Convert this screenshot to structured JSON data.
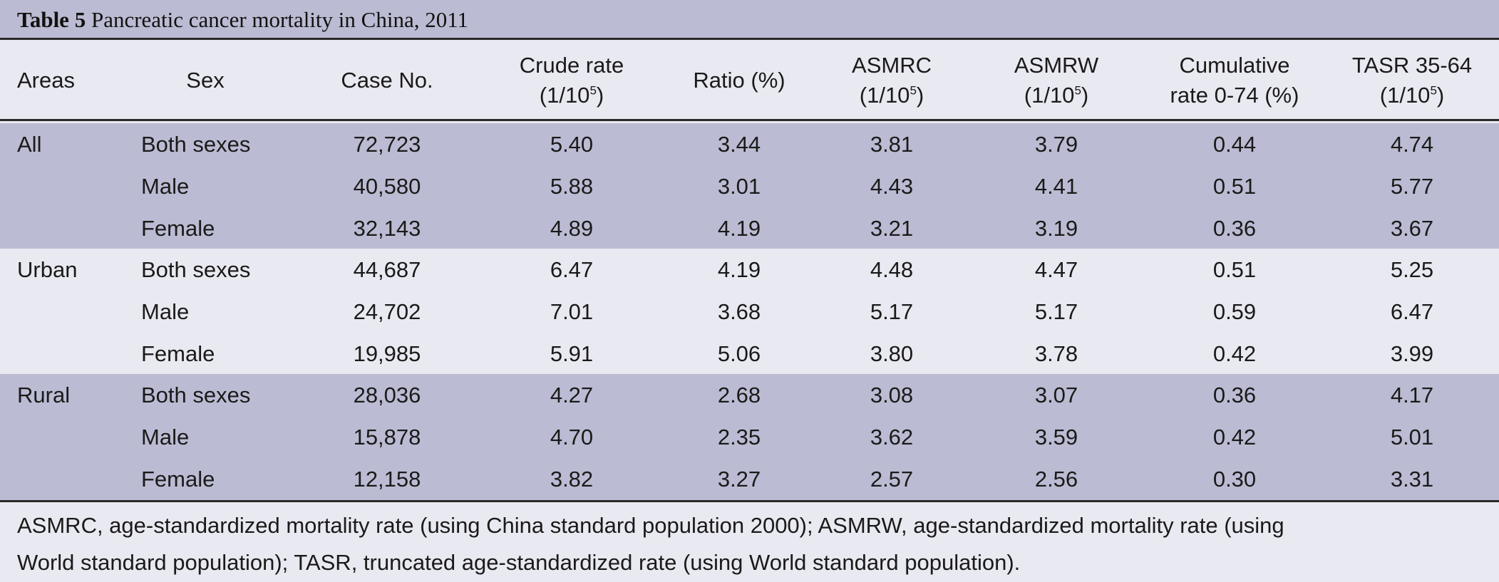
{
  "table": {
    "title_bold": "Table 5",
    "title_rest": " Pancreatic cancer mortality in China, 2011",
    "headers": {
      "areas": "Areas",
      "sex": "Sex",
      "case_no": "Case No.",
      "crude_rate_l1": "Crude rate",
      "crude_rate_l2a": "(1/10",
      "crude_rate_sup": "5",
      "crude_rate_l2b": ")",
      "ratio": "Ratio (%)",
      "asmrc_l1": "ASMRC",
      "asmrc_l2a": "(1/10",
      "asmrc_sup": "5",
      "asmrc_l2b": ")",
      "asmrw_l1": "ASMRW",
      "asmrw_l2a": "(1/10",
      "asmrw_sup": "5",
      "asmrw_l2b": ")",
      "cumulative_l1": "Cumulative",
      "cumulative_l2": "rate 0-74 (%)",
      "tasr_l1": "TASR 35-64",
      "tasr_l2a": "(1/10",
      "tasr_sup": "5",
      "tasr_l2b": ")"
    },
    "rows": [
      {
        "area": "All",
        "sex": "Both sexes",
        "case_no": "72,723",
        "crude": "5.40",
        "ratio": "3.44",
        "asmrc": "3.81",
        "asmrw": "3.79",
        "cumulative": "0.44",
        "tasr": "4.74"
      },
      {
        "area": "",
        "sex": "Male",
        "case_no": "40,580",
        "crude": "5.88",
        "ratio": "3.01",
        "asmrc": "4.43",
        "asmrw": "4.41",
        "cumulative": "0.51",
        "tasr": "5.77"
      },
      {
        "area": "",
        "sex": "Female",
        "case_no": "32,143",
        "crude": "4.89",
        "ratio": "4.19",
        "asmrc": "3.21",
        "asmrw": "3.19",
        "cumulative": "0.36",
        "tasr": "3.67"
      },
      {
        "area": "Urban",
        "sex": "Both sexes",
        "case_no": "44,687",
        "crude": "6.47",
        "ratio": "4.19",
        "asmrc": "4.48",
        "asmrw": "4.47",
        "cumulative": "0.51",
        "tasr": "5.25"
      },
      {
        "area": "",
        "sex": "Male",
        "case_no": "24,702",
        "crude": "7.01",
        "ratio": "3.68",
        "asmrc": "5.17",
        "asmrw": "5.17",
        "cumulative": "0.59",
        "tasr": "6.47"
      },
      {
        "area": "",
        "sex": "Female",
        "case_no": "19,985",
        "crude": "5.91",
        "ratio": "5.06",
        "asmrc": "3.80",
        "asmrw": "3.78",
        "cumulative": "0.42",
        "tasr": "3.99"
      },
      {
        "area": "Rural",
        "sex": "Both sexes",
        "case_no": "28,036",
        "crude": "4.27",
        "ratio": "2.68",
        "asmrc": "3.08",
        "asmrw": "3.07",
        "cumulative": "0.36",
        "tasr": "4.17"
      },
      {
        "area": "",
        "sex": "Male",
        "case_no": "15,878",
        "crude": "4.70",
        "ratio": "2.35",
        "asmrc": "3.62",
        "asmrw": "3.59",
        "cumulative": "0.42",
        "tasr": "5.01"
      },
      {
        "area": "",
        "sex": "Female",
        "case_no": "12,158",
        "crude": "3.82",
        "ratio": "3.27",
        "asmrc": "2.57",
        "asmrw": "2.56",
        "cumulative": "0.30",
        "tasr": "3.31"
      }
    ],
    "footnote_line1": "ASMRC, age-standardized mortality rate (using China standard population 2000); ASMRW, age-standardized mortality rate (using",
    "footnote_line2": "World standard population); TASR, truncated age-standardized rate (using World standard population)."
  },
  "colors": {
    "band_dark": "#bbbcd3",
    "band_light": "#e9e9f1",
    "rule": "#2a2a2a"
  }
}
